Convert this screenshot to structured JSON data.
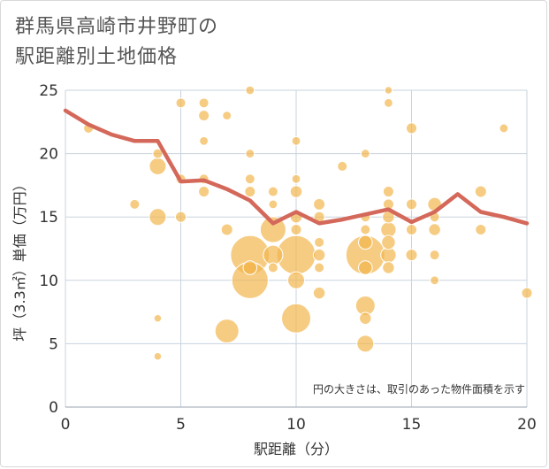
{
  "chart_data": {
    "type": "scatter",
    "title_lines": [
      "群馬県高崎市井野町の",
      "駅距離別土地価格"
    ],
    "xlabel": "駅距離（分）",
    "ylabel": "坪（3.3㎡）単価（万円）",
    "xlim": [
      0,
      20
    ],
    "ylim": [
      0,
      25
    ],
    "xticks": [
      0,
      5,
      10,
      15,
      20
    ],
    "yticks": [
      0,
      5,
      10,
      15,
      20,
      25
    ],
    "annotation": "円の大きさは、取引のあった物件面積を示す",
    "colors": {
      "bubble": "#f2b64e",
      "line": "#d4685a",
      "grid": "#c9d3de"
    },
    "scatter": [
      {
        "x": 1,
        "y": 22,
        "s": 1
      },
      {
        "x": 3,
        "y": 16,
        "s": 1
      },
      {
        "x": 4,
        "y": 20,
        "s": 1
      },
      {
        "x": 4,
        "y": 19,
        "s": 3
      },
      {
        "x": 4,
        "y": 15,
        "s": 3
      },
      {
        "x": 4,
        "y": 7,
        "s": 0.6
      },
      {
        "x": 4,
        "y": 4,
        "s": 0.6
      },
      {
        "x": 5,
        "y": 24,
        "s": 1
      },
      {
        "x": 5,
        "y": 18,
        "s": 1
      },
      {
        "x": 5,
        "y": 15,
        "s": 1.2
      },
      {
        "x": 6,
        "y": 24,
        "s": 1
      },
      {
        "x": 6,
        "y": 23,
        "s": 1.2
      },
      {
        "x": 6,
        "y": 21,
        "s": 0.8
      },
      {
        "x": 6,
        "y": 18,
        "s": 1
      },
      {
        "x": 6,
        "y": 17,
        "s": 1.2
      },
      {
        "x": 7,
        "y": 23,
        "s": 0.8
      },
      {
        "x": 7,
        "y": 14,
        "s": 1.4
      },
      {
        "x": 7,
        "y": 6,
        "s": 6
      },
      {
        "x": 8,
        "y": 25,
        "s": 0.8
      },
      {
        "x": 8,
        "y": 20,
        "s": 0.8
      },
      {
        "x": 8,
        "y": 18,
        "s": 1
      },
      {
        "x": 8,
        "y": 17,
        "s": 1.2
      },
      {
        "x": 8,
        "y": 12,
        "s": 16
      },
      {
        "x": 8,
        "y": 11,
        "s": 2
      },
      {
        "x": 8,
        "y": 10,
        "s": 14
      },
      {
        "x": 9,
        "y": 17,
        "s": 1
      },
      {
        "x": 9,
        "y": 16,
        "s": 0.8
      },
      {
        "x": 9,
        "y": 14,
        "s": 7
      },
      {
        "x": 9,
        "y": 12,
        "s": 4
      },
      {
        "x": 9,
        "y": 11,
        "s": 1
      },
      {
        "x": 10,
        "y": 21,
        "s": 0.8
      },
      {
        "x": 10,
        "y": 18,
        "s": 0.8
      },
      {
        "x": 10,
        "y": 17,
        "s": 1.5
      },
      {
        "x": 10,
        "y": 15,
        "s": 1.5
      },
      {
        "x": 10,
        "y": 14,
        "s": 1.2
      },
      {
        "x": 10,
        "y": 12,
        "s": 16
      },
      {
        "x": 10,
        "y": 10,
        "s": 3
      },
      {
        "x": 10,
        "y": 7,
        "s": 9
      },
      {
        "x": 11,
        "y": 16,
        "s": 1.4
      },
      {
        "x": 11,
        "y": 15,
        "s": 1.2
      },
      {
        "x": 11,
        "y": 13,
        "s": 1
      },
      {
        "x": 11,
        "y": 12,
        "s": 1.5
      },
      {
        "x": 11,
        "y": 11,
        "s": 1
      },
      {
        "x": 11,
        "y": 9,
        "s": 1.5
      },
      {
        "x": 12,
        "y": 19,
        "s": 1
      },
      {
        "x": 13,
        "y": 20,
        "s": 0.8
      },
      {
        "x": 13,
        "y": 15,
        "s": 1
      },
      {
        "x": 13,
        "y": 14,
        "s": 1
      },
      {
        "x": 13,
        "y": 13,
        "s": 2
      },
      {
        "x": 13,
        "y": 12,
        "s": 16
      },
      {
        "x": 13,
        "y": 11,
        "s": 2
      },
      {
        "x": 13,
        "y": 8,
        "s": 4
      },
      {
        "x": 13,
        "y": 7,
        "s": 1.5
      },
      {
        "x": 13,
        "y": 5,
        "s": 3
      },
      {
        "x": 14,
        "y": 25,
        "s": 0.6
      },
      {
        "x": 14,
        "y": 24,
        "s": 0.8
      },
      {
        "x": 14,
        "y": 17,
        "s": 1.2
      },
      {
        "x": 14,
        "y": 16,
        "s": 1.2
      },
      {
        "x": 14,
        "y": 15,
        "s": 1.5
      },
      {
        "x": 14,
        "y": 14,
        "s": 2.5
      },
      {
        "x": 14,
        "y": 13,
        "s": 2
      },
      {
        "x": 14,
        "y": 12,
        "s": 2.5
      },
      {
        "x": 14,
        "y": 11,
        "s": 1.5
      },
      {
        "x": 15,
        "y": 22,
        "s": 1.2
      },
      {
        "x": 15,
        "y": 16,
        "s": 1.2
      },
      {
        "x": 15,
        "y": 14,
        "s": 1.2
      },
      {
        "x": 15,
        "y": 12,
        "s": 1.4
      },
      {
        "x": 16,
        "y": 16,
        "s": 2
      },
      {
        "x": 16,
        "y": 15,
        "s": 1
      },
      {
        "x": 16,
        "y": 14,
        "s": 1.5
      },
      {
        "x": 16,
        "y": 12,
        "s": 1
      },
      {
        "x": 16,
        "y": 10,
        "s": 0.8
      },
      {
        "x": 18,
        "y": 17,
        "s": 1.4
      },
      {
        "x": 18,
        "y": 14,
        "s": 1.2
      },
      {
        "x": 19,
        "y": 22,
        "s": 0.8
      },
      {
        "x": 20,
        "y": 9,
        "s": 1.2
      }
    ],
    "line": {
      "x": [
        0,
        1,
        2,
        3,
        4,
        5,
        6,
        7,
        8,
        9,
        10,
        11,
        12,
        13,
        14,
        15,
        16,
        17,
        18,
        19,
        20
      ],
      "y": [
        23.4,
        22.3,
        21.5,
        21,
        21,
        17.8,
        17.9,
        17.2,
        16.3,
        14.5,
        15.4,
        14.5,
        14.8,
        15.2,
        15.6,
        14.6,
        15.4,
        16.8,
        15.4,
        15,
        14.5
      ]
    }
  }
}
